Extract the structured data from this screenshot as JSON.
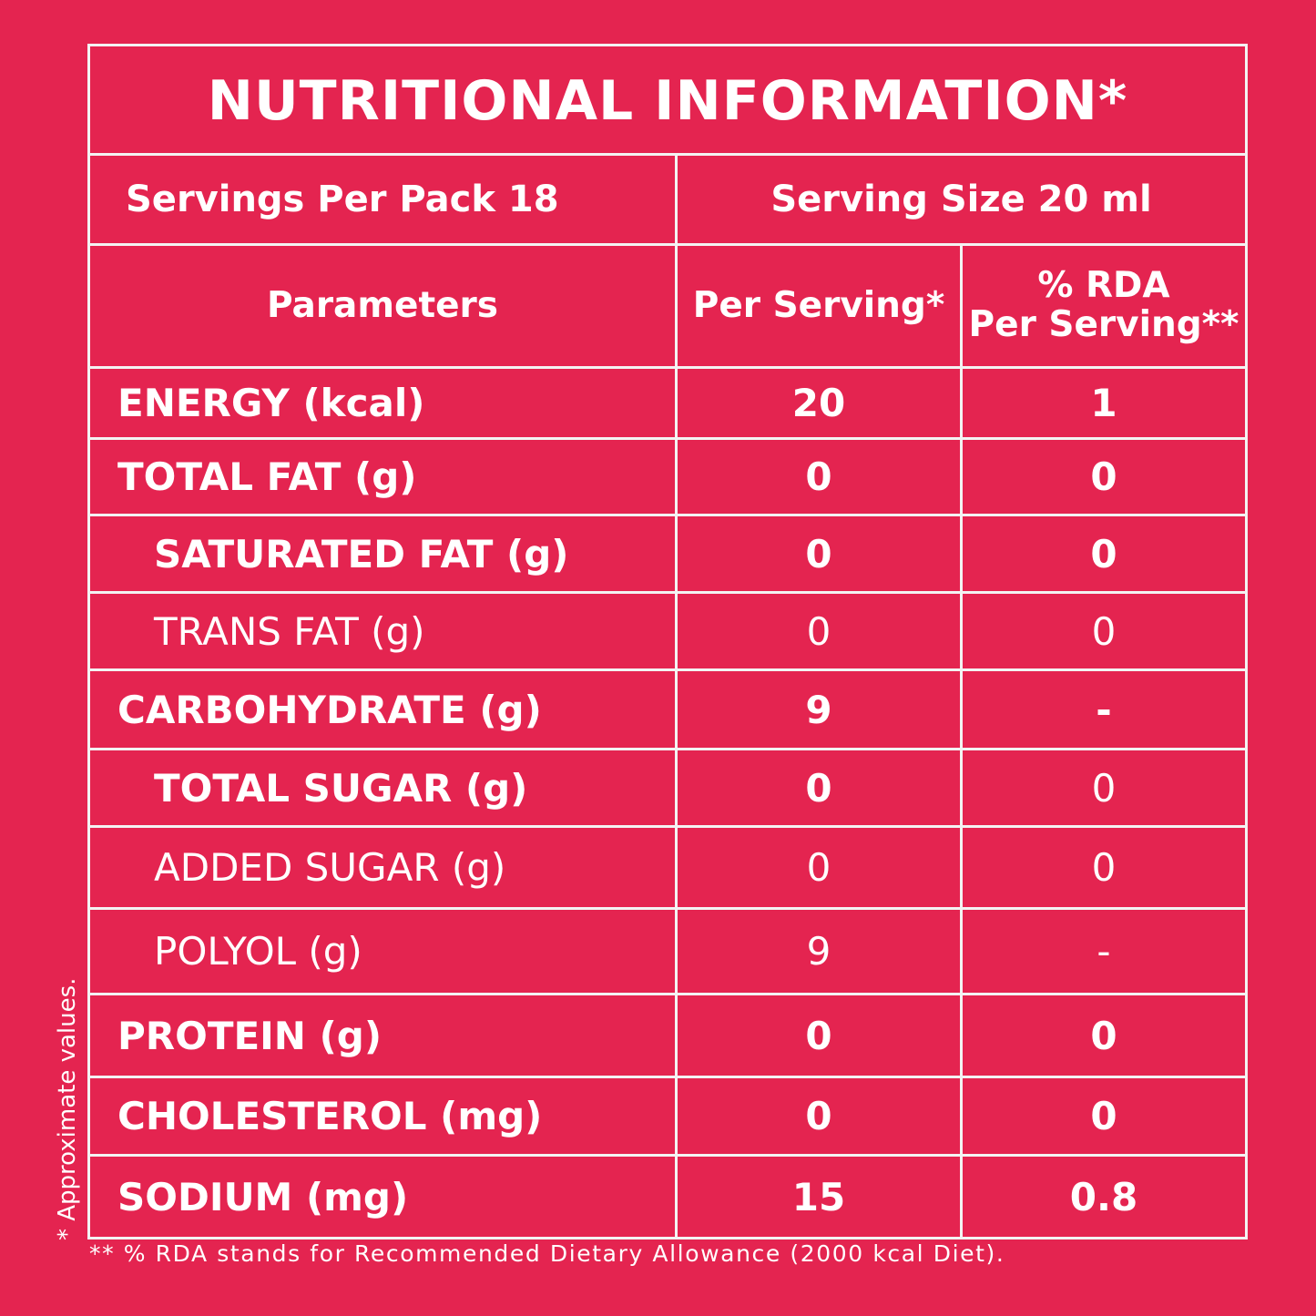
{
  "colors": {
    "background": "#e42450",
    "rule": "#f3f3f3",
    "text": "#ffffff"
  },
  "title": "NUTRITIONAL INFORMATION*",
  "servings_per_pack": "Servings Per Pack  18",
  "serving_size": "Serving Size 20 ml",
  "headers": {
    "parameters": "Parameters",
    "per_serving": "Per Serving*",
    "rda_line1": "% RDA",
    "rda_line2": "Per Serving**"
  },
  "rows": [
    {
      "label": "ENERGY (kcal)",
      "per_serving": "20",
      "rda": "1"
    },
    {
      "label": "TOTAL FAT (g)",
      "per_serving": "0",
      "rda": "0"
    },
    {
      "label": "SATURATED FAT (g)",
      "per_serving": "0",
      "rda": "0"
    },
    {
      "label": "TRANS FAT (g)",
      "per_serving": "0",
      "rda": "0"
    },
    {
      "label": "CARBOHYDRATE (g)",
      "per_serving": "9",
      "rda": "-"
    },
    {
      "label": "TOTAL SUGAR (g)",
      "per_serving": "0",
      "rda": "0"
    },
    {
      "label": "ADDED SUGAR (g)",
      "per_serving": "0",
      "rda": "0"
    },
    {
      "label": "POLYOL (g)",
      "per_serving": "9",
      "rda": "-"
    },
    {
      "label": "PROTEIN (g)",
      "per_serving": "0",
      "rda": "0"
    },
    {
      "label": "CHOLESTEROL (mg)",
      "per_serving": "0",
      "rda": "0"
    },
    {
      "label": "SODIUM (mg)",
      "per_serving": "15",
      "rda": "0.8"
    }
  ],
  "side_note": "* Approximate values.",
  "footnote": "** % RDA stands for Recommended Dietary Allowance (2000 kcal Diet)."
}
